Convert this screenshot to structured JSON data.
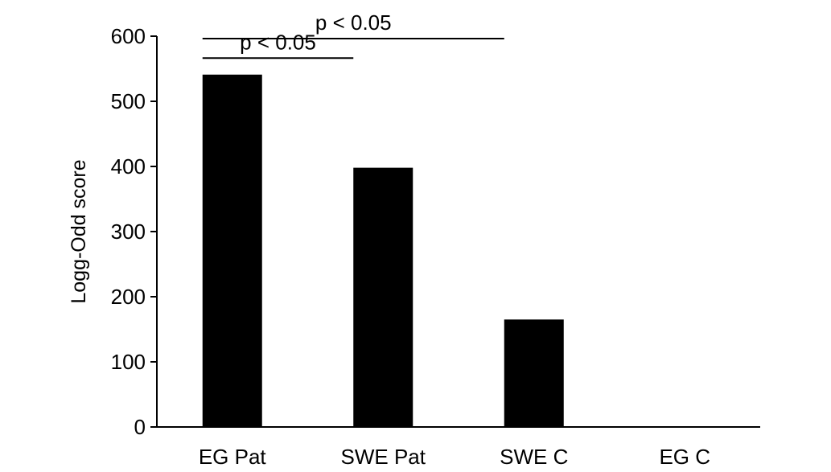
{
  "chart_data": {
    "type": "bar",
    "title": "",
    "xlabel": "",
    "ylabel": "Logg-Odd score",
    "categories": [
      "EG Pat",
      "SWE Pat",
      "SWE C",
      "EG C"
    ],
    "values": [
      541,
      398,
      165,
      0
    ],
    "ylim": [
      0,
      600
    ],
    "yticks": [
      "0",
      "100",
      "200",
      "300",
      "400",
      "500",
      "600"
    ],
    "bar_color": "#000000",
    "grid": false,
    "legend": "none",
    "annotations": [
      {
        "text": "p < 0.05",
        "from": "EG Pat",
        "to": "SWE Pat",
        "level": 570
      },
      {
        "text": "p < 0.05",
        "from": "EG Pat",
        "to": "SWE C",
        "level": 600
      }
    ]
  }
}
